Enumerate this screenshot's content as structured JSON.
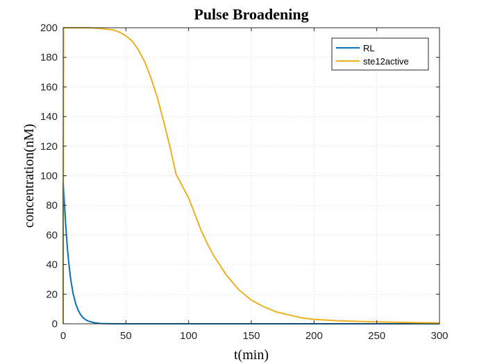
{
  "chart_data": {
    "type": "line",
    "title": "Pulse Broadening",
    "xlabel": "t(min)",
    "ylabel": "concentration(nM)",
    "xlim": [
      0,
      300
    ],
    "ylim": [
      0,
      200
    ],
    "xticks": [
      0,
      50,
      100,
      150,
      200,
      250,
      300
    ],
    "yticks": [
      0,
      20,
      40,
      60,
      80,
      100,
      120,
      140,
      160,
      180,
      200
    ],
    "grid": "dotted",
    "legend_position": "top-right",
    "series": [
      {
        "name": "RL",
        "color": "#0072BD",
        "x": [
          0,
          0.01,
          1,
          2,
          3,
          4,
          5,
          6,
          7,
          8,
          10,
          12,
          14,
          16,
          18,
          20,
          25,
          30,
          40,
          60,
          100,
          150,
          200,
          250,
          300
        ],
        "y": [
          0,
          95,
          82,
          67,
          55,
          45,
          37,
          30,
          25,
          20,
          13.5,
          9,
          6,
          4,
          2.7,
          1.8,
          0.7,
          0.2,
          0,
          0,
          0,
          0,
          0,
          0,
          0
        ]
      },
      {
        "name": "ste12active",
        "color": "#EDB120",
        "x": [
          0,
          0.3,
          10,
          20,
          30,
          40,
          45,
          50,
          55,
          60,
          65,
          70,
          75,
          80,
          85,
          90,
          95,
          100,
          105,
          110,
          115,
          120,
          130,
          140,
          150,
          160,
          170,
          180,
          190,
          200,
          220,
          240,
          260,
          280,
          300
        ],
        "y": [
          0,
          200,
          200,
          200,
          199.5,
          198.5,
          197,
          194.5,
          191,
          185,
          177,
          166,
          153,
          137,
          120,
          101,
          93,
          85,
          74,
          63,
          54,
          46,
          33,
          23,
          16,
          11.5,
          8,
          6,
          4,
          3,
          2,
          1.5,
          1.1,
          0.8,
          0.6
        ]
      }
    ]
  }
}
